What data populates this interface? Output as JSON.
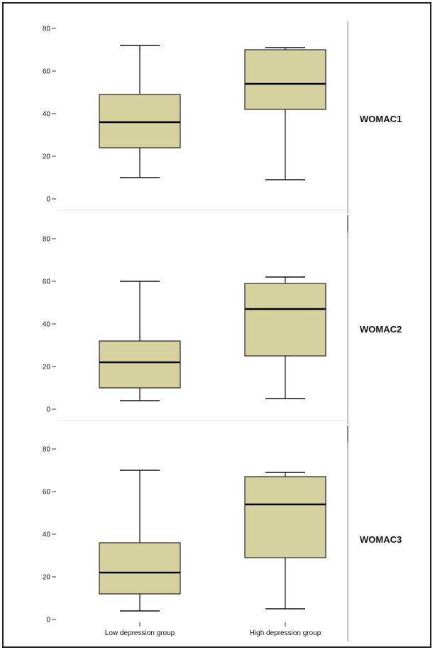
{
  "chart_data": {
    "type": "boxplot",
    "categories": [
      "Low depression group",
      "High depression group"
    ],
    "yticks": [
      0,
      20,
      40,
      60,
      80
    ],
    "ylim": [
      0,
      85
    ],
    "box_color": "#d6d2a0",
    "panels": [
      {
        "label": "WOMAC1",
        "boxes": [
          {
            "min": 10,
            "q1": 24,
            "median": 36,
            "q3": 49,
            "max": 72
          },
          {
            "min": 9,
            "q1": 42,
            "median": 54,
            "q3": 70,
            "max": 71
          }
        ]
      },
      {
        "label": "WOMAC2",
        "boxes": [
          {
            "min": 4,
            "q1": 10,
            "median": 22,
            "q3": 32,
            "max": 60
          },
          {
            "min": 5,
            "q1": 25,
            "median": 47,
            "q3": 59,
            "max": 62
          }
        ]
      },
      {
        "label": "WOMAC3",
        "boxes": [
          {
            "min": 4,
            "q1": 12,
            "median": 22,
            "q3": 36,
            "max": 70
          },
          {
            "min": 5,
            "q1": 29,
            "median": 54,
            "q3": 67,
            "max": 69
          }
        ]
      }
    ]
  }
}
